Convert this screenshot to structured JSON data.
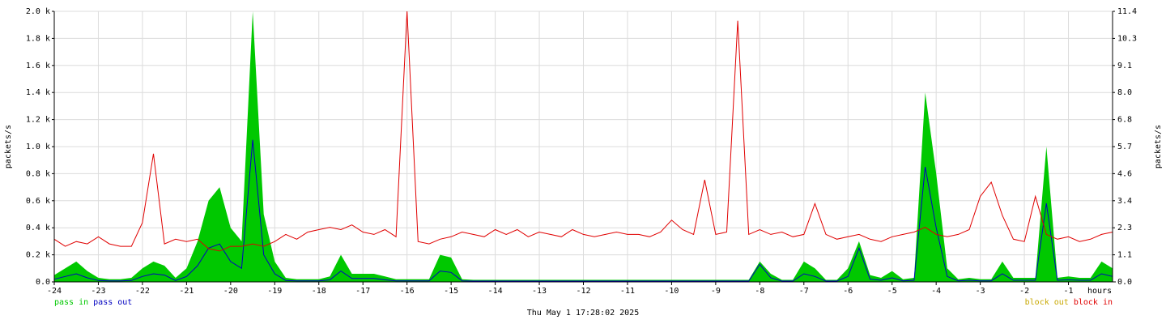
{
  "chart_data": {
    "type": "line",
    "y_label": "packets/s",
    "y2_label": "packets/s",
    "x_label": "hours",
    "date": "Thu May  1 17:28:02 2025",
    "grid": true,
    "xlim": [
      -24,
      0
    ],
    "xticks": [
      -24,
      -23,
      -22,
      -21,
      -20,
      -19,
      -18,
      -17,
      -16,
      -15,
      -14,
      -13,
      -12,
      -11,
      -10,
      -9,
      -8,
      -7,
      -6,
      -5,
      -4,
      -3,
      -2,
      -1
    ],
    "ylim": [
      0,
      2000
    ],
    "yticks": [
      {
        "value": 0,
        "label": "0.0"
      },
      {
        "value": 200,
        "label": "0.2 k"
      },
      {
        "value": 400,
        "label": "0.4 k"
      },
      {
        "value": 600,
        "label": "0.6 k"
      },
      {
        "value": 800,
        "label": "0.8 k"
      },
      {
        "value": 1000,
        "label": "1.0 k"
      },
      {
        "value": 1200,
        "label": "1.2 k"
      },
      {
        "value": 1400,
        "label": "1.4 k"
      },
      {
        "value": 1600,
        "label": "1.6 k"
      },
      {
        "value": 1800,
        "label": "1.8 k"
      },
      {
        "value": 2000,
        "label": "2.0 k"
      }
    ],
    "y2lim": [
      0,
      11.4
    ],
    "y2ticks": [
      {
        "value": 0,
        "label": "0.0"
      },
      {
        "value": 1.14,
        "label": "1.1"
      },
      {
        "value": 2.28,
        "label": "2.3"
      },
      {
        "value": 3.42,
        "label": "3.4"
      },
      {
        "value": 4.56,
        "label": "4.6"
      },
      {
        "value": 5.7,
        "label": "5.7"
      },
      {
        "value": 6.84,
        "label": "6.8"
      },
      {
        "value": 7.98,
        "label": "8.0"
      },
      {
        "value": 9.12,
        "label": "9.1"
      },
      {
        "value": 10.26,
        "label": "10.3"
      },
      {
        "value": 11.4,
        "label": "11.4"
      }
    ],
    "x": [
      -24,
      -23.75,
      -23.5,
      -23.25,
      -23,
      -22.75,
      -22.5,
      -22.25,
      -22,
      -21.75,
      -21.5,
      -21.25,
      -21,
      -20.75,
      -20.5,
      -20.25,
      -20,
      -19.75,
      -19.5,
      -19.25,
      -19,
      -18.75,
      -18.5,
      -18.25,
      -18,
      -17.75,
      -17.5,
      -17.25,
      -17,
      -16.75,
      -16.5,
      -16.25,
      -16,
      -15.75,
      -15.5,
      -15.25,
      -15,
      -14.75,
      -14.5,
      -14.25,
      -14,
      -13.75,
      -13.5,
      -13.25,
      -13,
      -12.75,
      -12.5,
      -12.25,
      -12,
      -11.75,
      -11.5,
      -11.25,
      -11,
      -10.75,
      -10.5,
      -10.25,
      -10,
      -9.75,
      -9.5,
      -9.25,
      -9,
      -8.75,
      -8.5,
      -8.25,
      -8,
      -7.75,
      -7.5,
      -7.25,
      -7,
      -6.75,
      -6.5,
      -6.25,
      -6,
      -5.75,
      -5.5,
      -5.25,
      -5,
      -4.75,
      -4.5,
      -4.25,
      -4,
      -3.75,
      -3.5,
      -3.25,
      -3,
      -2.75,
      -2.5,
      -2.25,
      -2,
      -1.75,
      -1.5,
      -1.25,
      -1,
      -0.75,
      -0.5,
      -0.25,
      0
    ],
    "series": [
      {
        "name": "pass in",
        "color": "#00c800",
        "style": "area",
        "axis": "y",
        "values": [
          50,
          100,
          150,
          80,
          30,
          20,
          20,
          30,
          100,
          150,
          120,
          30,
          100,
          300,
          600,
          700,
          400,
          300,
          2000,
          500,
          150,
          30,
          20,
          20,
          20,
          40,
          200,
          60,
          60,
          60,
          40,
          20,
          20,
          20,
          20,
          200,
          180,
          20,
          15,
          15,
          15,
          15,
          15,
          15,
          15,
          15,
          15,
          15,
          15,
          15,
          15,
          15,
          15,
          15,
          15,
          15,
          15,
          15,
          15,
          15,
          15,
          15,
          15,
          15,
          150,
          60,
          15,
          15,
          150,
          100,
          15,
          15,
          100,
          300,
          50,
          30,
          80,
          20,
          30,
          1400,
          800,
          100,
          20,
          30,
          20,
          20,
          150,
          30,
          30,
          30,
          1000,
          30,
          40,
          30,
          30,
          150,
          100
        ]
      },
      {
        "name": "pass out",
        "color": "#0000c0",
        "style": "line",
        "axis": "y",
        "values": [
          20,
          40,
          60,
          30,
          10,
          8,
          8,
          10,
          40,
          60,
          50,
          10,
          40,
          120,
          250,
          280,
          150,
          100,
          1050,
          200,
          60,
          10,
          8,
          8,
          8,
          15,
          80,
          25,
          25,
          25,
          15,
          8,
          8,
          8,
          8,
          80,
          70,
          8,
          6,
          6,
          6,
          6,
          6,
          6,
          6,
          6,
          6,
          6,
          6,
          6,
          6,
          6,
          6,
          6,
          6,
          6,
          6,
          6,
          6,
          6,
          6,
          6,
          6,
          6,
          130,
          30,
          6,
          6,
          60,
          40,
          6,
          6,
          40,
          250,
          20,
          12,
          30,
          8,
          12,
          850,
          400,
          40,
          8,
          12,
          8,
          8,
          60,
          12,
          12,
          12,
          580,
          12,
          15,
          12,
          12,
          60,
          40
        ]
      },
      {
        "name": "block out",
        "color": "#c8a800",
        "style": "line",
        "axis": "y2",
        "values": [
          0,
          0,
          0,
          0,
          0,
          0,
          0,
          0,
          0,
          0,
          0,
          0,
          0,
          0,
          0,
          0,
          0,
          0,
          0,
          0,
          0,
          0,
          0,
          0,
          0,
          0,
          0,
          0,
          0,
          0,
          0,
          0,
          0,
          0,
          0,
          0,
          0,
          0,
          0,
          0,
          0,
          0,
          0,
          0,
          0,
          0,
          0,
          0,
          0,
          0,
          0,
          0,
          0,
          0,
          0,
          0,
          0,
          0,
          0,
          0,
          0,
          0,
          0,
          0,
          0,
          0,
          0,
          0,
          0,
          0,
          0,
          0,
          0,
          0,
          0,
          0,
          0,
          0,
          0,
          0,
          0,
          0,
          0,
          0,
          0,
          0,
          0,
          0,
          0,
          0,
          0,
          0,
          0,
          0,
          0,
          0,
          0
        ]
      },
      {
        "name": "block in",
        "color": "#e00000",
        "style": "line",
        "axis": "y2",
        "values": [
          1.8,
          1.5,
          1.7,
          1.6,
          1.9,
          1.6,
          1.5,
          1.5,
          2.5,
          5.4,
          1.6,
          1.8,
          1.7,
          1.8,
          1.4,
          1.3,
          1.5,
          1.5,
          1.6,
          1.5,
          1.7,
          2.0,
          1.8,
          2.1,
          2.2,
          2.3,
          2.2,
          2.4,
          2.1,
          2.0,
          2.2,
          1.9,
          11.4,
          1.7,
          1.6,
          1.8,
          1.9,
          2.1,
          2.0,
          1.9,
          2.2,
          2.0,
          2.2,
          1.9,
          2.1,
          2.0,
          1.9,
          2.2,
          2.0,
          1.9,
          2.0,
          2.1,
          2.0,
          2.0,
          1.9,
          2.1,
          2.6,
          2.2,
          2.0,
          4.3,
          2.0,
          2.1,
          11.0,
          2.0,
          2.2,
          2.0,
          2.1,
          1.9,
          2.0,
          3.3,
          2.0,
          1.8,
          1.9,
          2.0,
          1.8,
          1.7,
          1.9,
          2.0,
          2.1,
          2.3,
          2.0,
          1.9,
          2.0,
          2.2,
          3.6,
          4.2,
          2.8,
          1.8,
          1.7,
          3.6,
          2.0,
          1.8,
          1.9,
          1.7,
          1.8,
          2.0,
          2.1
        ]
      }
    ]
  }
}
